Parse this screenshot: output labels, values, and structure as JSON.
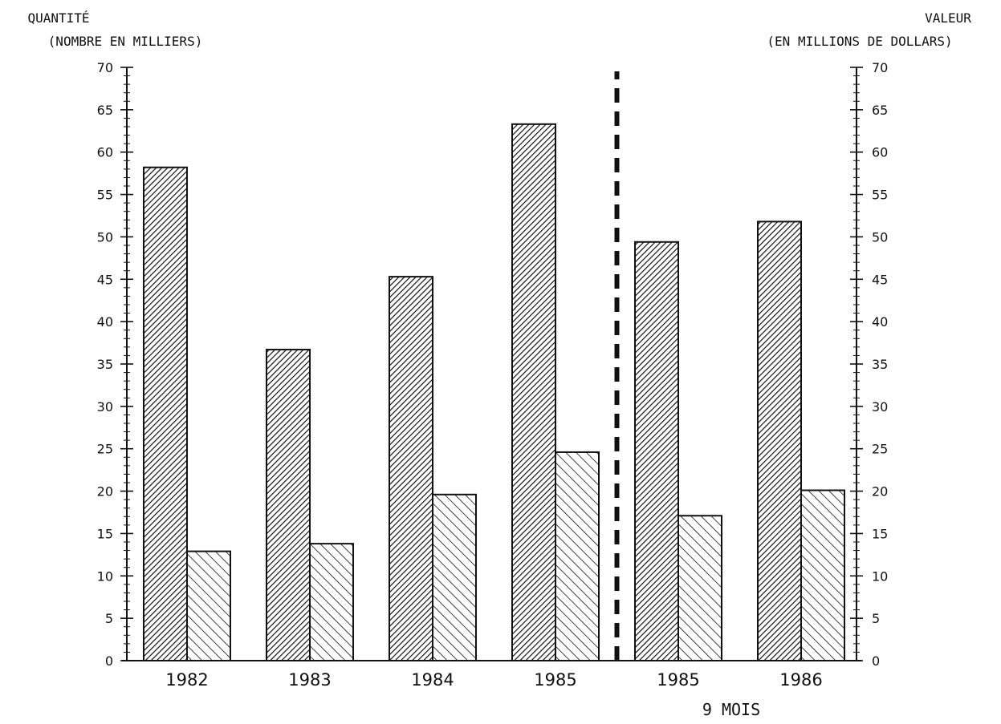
{
  "chart_data": {
    "type": "bar",
    "left_axis": {
      "title_line1": "QUANTITÉ",
      "title_line2": "(NOMBRE EN MILLIERS)",
      "ylim": [
        0,
        70
      ],
      "ticks": [
        "0",
        "5",
        "10",
        "15",
        "20",
        "25",
        "30",
        "35",
        "40",
        "45",
        "50",
        "55",
        "60",
        "65",
        "70"
      ]
    },
    "right_axis": {
      "title_line1": "VALEUR",
      "title_line2": "(EN MILLIONS DE DOLLARS)",
      "ylim": [
        0,
        70
      ],
      "ticks": [
        "0",
        "5",
        "10",
        "15",
        "20",
        "25",
        "30",
        "35",
        "40",
        "45",
        "50",
        "55",
        "60",
        "65",
        "70"
      ]
    },
    "categories": [
      "1982",
      "1983",
      "1984",
      "1985",
      "1985",
      "1986"
    ],
    "period_note": "9 MOIS",
    "series": [
      {
        "values": [
          58.2,
          36.7,
          45.3,
          63.3,
          49.4,
          51.8
        ],
        "axis": "left",
        "pattern": "dense-diagonal-right"
      },
      {
        "values": [
          12.9,
          13.8,
          19.6,
          24.6,
          17.1,
          20.1
        ],
        "axis": "right",
        "pattern": "sparse-diagonal-left"
      }
    ],
    "separator": {
      "style": "dashed",
      "between_categories": [
        3,
        4
      ]
    },
    "grid": false,
    "legend": "none"
  }
}
